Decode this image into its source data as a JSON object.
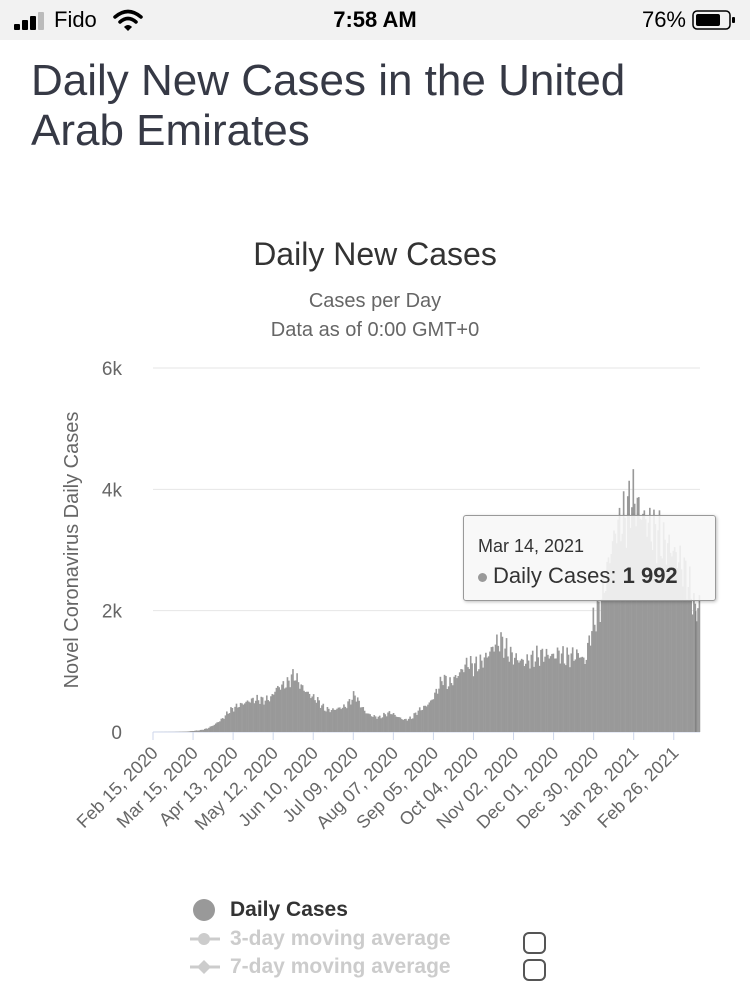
{
  "status": {
    "carrier": "Fido",
    "time": "7:58 AM",
    "battery": "76%"
  },
  "page": {
    "title": "Daily New Cases in the United Arab Emirates"
  },
  "chart_data": {
    "type": "bar",
    "title": "Daily New Cases",
    "subtitle": "Cases per Day",
    "subtitle2": "Data as of 0:00 GMT+0",
    "ylabel": "Novel Coronavirus Daily Cases",
    "xlabel": "",
    "ylim": [
      0,
      6000
    ],
    "yticks": [
      0,
      2000,
      4000,
      6000
    ],
    "ytick_labels": [
      "0",
      "2k",
      "4k",
      "6k"
    ],
    "x_start": "2020-02-15",
    "x_end": "2021-03-17",
    "xtick_labels": [
      "Feb 15, 2020",
      "Mar 15, 2020",
      "Apr 13, 2020",
      "May 12, 2020",
      "Jun 10, 2020",
      "Jul 09, 2020",
      "Aug 07, 2020",
      "Sep 05, 2020",
      "Oct 04, 2020",
      "Nov 02, 2020",
      "Dec 01, 2020",
      "Dec 30, 2020",
      "Jan 28, 2021",
      "Feb 26, 2021"
    ],
    "grid": true,
    "bar_color": "#999999",
    "series": [
      {
        "name": "Daily Cases",
        "color": "#999999",
        "points": [
          [
            "2020-02-15",
            0
          ],
          [
            "2020-03-01",
            2
          ],
          [
            "2020-03-10",
            8
          ],
          [
            "2020-03-20",
            30
          ],
          [
            "2020-03-25",
            60
          ],
          [
            "2020-03-30",
            120
          ],
          [
            "2020-04-05",
            220
          ],
          [
            "2020-04-10",
            350
          ],
          [
            "2020-04-15",
            420
          ],
          [
            "2020-04-20",
            470
          ],
          [
            "2020-04-25",
            520
          ],
          [
            "2020-05-01",
            540
          ],
          [
            "2020-05-05",
            520
          ],
          [
            "2020-05-10",
            560
          ],
          [
            "2020-05-14",
            720
          ],
          [
            "2020-05-18",
            760
          ],
          [
            "2020-05-22",
            800
          ],
          [
            "2020-05-25",
            900
          ],
          [
            "2020-05-27",
            950
          ],
          [
            "2020-05-30",
            820
          ],
          [
            "2020-06-03",
            700
          ],
          [
            "2020-06-08",
            600
          ],
          [
            "2020-06-13",
            520
          ],
          [
            "2020-06-18",
            380
          ],
          [
            "2020-06-23",
            360
          ],
          [
            "2020-06-28",
            390
          ],
          [
            "2020-07-03",
            420
          ],
          [
            "2020-07-07",
            520
          ],
          [
            "2020-07-10",
            620
          ],
          [
            "2020-07-13",
            480
          ],
          [
            "2020-07-18",
            320
          ],
          [
            "2020-07-23",
            260
          ],
          [
            "2020-07-28",
            240
          ],
          [
            "2020-08-02",
            300
          ],
          [
            "2020-08-05",
            320
          ],
          [
            "2020-08-10",
            250
          ],
          [
            "2020-08-15",
            200
          ],
          [
            "2020-08-20",
            230
          ],
          [
            "2020-08-25",
            350
          ],
          [
            "2020-08-30",
            420
          ],
          [
            "2020-09-03",
            500
          ],
          [
            "2020-09-08",
            700
          ],
          [
            "2020-09-12",
            900
          ],
          [
            "2020-09-16",
            780
          ],
          [
            "2020-09-20",
            870
          ],
          [
            "2020-09-25",
            1000
          ],
          [
            "2020-09-30",
            1150
          ],
          [
            "2020-10-04",
            1080
          ],
          [
            "2020-10-08",
            1120
          ],
          [
            "2020-10-12",
            1200
          ],
          [
            "2020-10-16",
            1320
          ],
          [
            "2020-10-20",
            1450
          ],
          [
            "2020-10-24",
            1500
          ],
          [
            "2020-10-28",
            1350
          ],
          [
            "2020-11-01",
            1250
          ],
          [
            "2020-11-05",
            1200
          ],
          [
            "2020-11-10",
            1150
          ],
          [
            "2020-11-15",
            1200
          ],
          [
            "2020-11-20",
            1250
          ],
          [
            "2020-11-25",
            1280
          ],
          [
            "2020-12-01",
            1250
          ],
          [
            "2020-12-05",
            1300
          ],
          [
            "2020-12-10",
            1220
          ],
          [
            "2020-12-15",
            1260
          ],
          [
            "2020-12-20",
            1280
          ],
          [
            "2020-12-24",
            1150
          ],
          [
            "2020-12-27",
            1500
          ],
          [
            "2020-12-30",
            1800
          ],
          [
            "2021-01-03",
            2000
          ],
          [
            "2021-01-07",
            2400
          ],
          [
            "2021-01-11",
            2900
          ],
          [
            "2021-01-15",
            3300
          ],
          [
            "2021-01-19",
            3450
          ],
          [
            "2021-01-23",
            3550
          ],
          [
            "2021-01-27",
            3900
          ],
          [
            "2021-01-30",
            3750
          ],
          [
            "2021-02-03",
            3600
          ],
          [
            "2021-02-07",
            3450
          ],
          [
            "2021-02-11",
            3300
          ],
          [
            "2021-02-15",
            3250
          ],
          [
            "2021-02-19",
            3100
          ],
          [
            "2021-02-23",
            3050
          ],
          [
            "2021-02-27",
            2950
          ],
          [
            "2021-03-03",
            2800
          ],
          [
            "2021-03-07",
            2600
          ],
          [
            "2021-03-11",
            2300
          ],
          [
            "2021-03-14",
            1992
          ],
          [
            "2021-03-17",
            2100
          ]
        ]
      }
    ],
    "tooltip": {
      "date": "Mar 14, 2021",
      "series": "Daily Cases",
      "value": "1 992"
    }
  },
  "legend": {
    "items": [
      {
        "label": "Daily Cases",
        "state": "active"
      },
      {
        "label": "3-day moving average",
        "state": "inactive"
      },
      {
        "label": "7-day moving average",
        "state": "inactive"
      }
    ]
  }
}
